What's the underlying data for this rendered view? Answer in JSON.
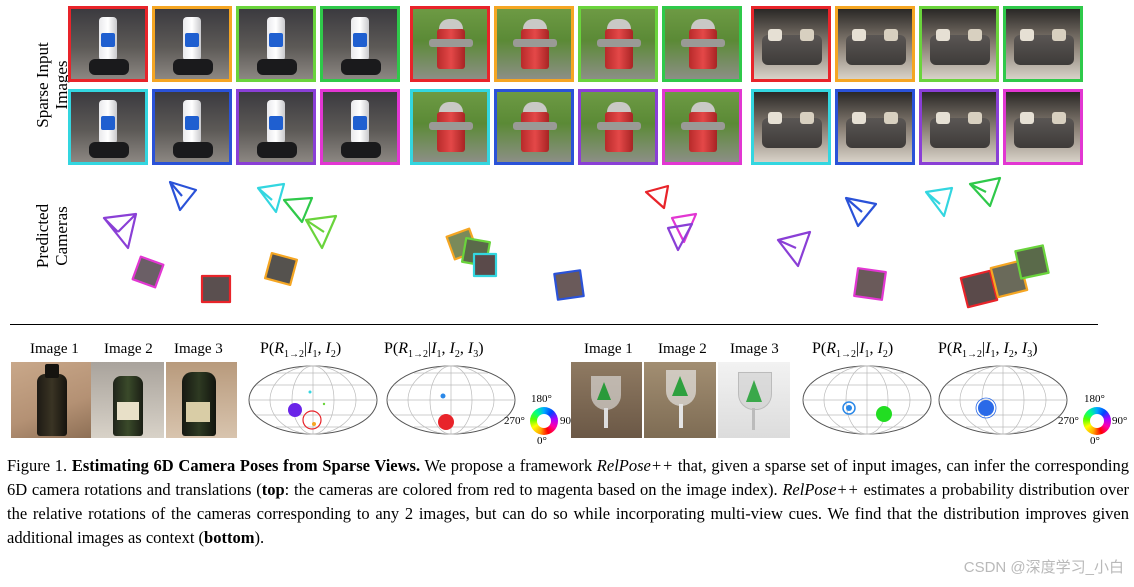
{
  "labels": {
    "sparse_input": [
      "Sparse Input",
      "Images"
    ],
    "predicted": [
      "Predicted",
      "Cameras"
    ]
  },
  "bottom": {
    "left": {
      "image_labels": [
        "Image 1",
        "Image 2",
        "Image 3"
      ],
      "formula_pair": "P(R1→2|I1, I2)",
      "formula_triple": "P(R1→2|I1, I2, I3)"
    },
    "right": {
      "image_labels": [
        "Image 1",
        "Image 2",
        "Image 3"
      ],
      "formula_pair": "P(R1→2|I1, I2)",
      "formula_triple": "P(R1→2|I1, I2, I3)"
    },
    "wheel": {
      "top": "180°",
      "left": "270°",
      "right": "90°",
      "bottom": "0°"
    }
  },
  "thumb_colors": {
    "robot": [
      "#e8242a",
      "#f5a623",
      "#6ad43c",
      "#2fc94a",
      "#33d6e0",
      "#2a52d8",
      "#8a3fd6",
      "#e236d2"
    ],
    "hydrant": [
      "#e8242a",
      "#f5a623",
      "#6ad43c",
      "#2fc94a",
      "#33d6e0",
      "#2a52d8",
      "#8a3fd6",
      "#e236d2"
    ],
    "couch": [
      "#e8242a",
      "#f5a623",
      "#6ad43c",
      "#2fc94a",
      "#33d6e0",
      "#2a52d8",
      "#8a3fd6",
      "#e236d2"
    ]
  },
  "caption": {
    "label": "Figure 1.",
    "title": "Estimating 6D Camera Poses from Sparse Views.",
    "t1": "We propose a framework",
    "method1": "RelPose++",
    "t2": "that, given a sparse set of input images, can infer the corresponding 6D camera rotations and translations (",
    "top_word": "top",
    "t3": ": the cameras are colored from red to magenta based on the image index).",
    "method2": "RelPose++",
    "t4": "estimates a probability distribution over the relative rotations of the cameras corresponding to any 2 images, but can do so while incorporating multi-view cues. We find that the distribution improves given additional images as context (",
    "bottom_word": "bottom",
    "t5": ")."
  },
  "watermark": "CSDN @深度学习_小白"
}
